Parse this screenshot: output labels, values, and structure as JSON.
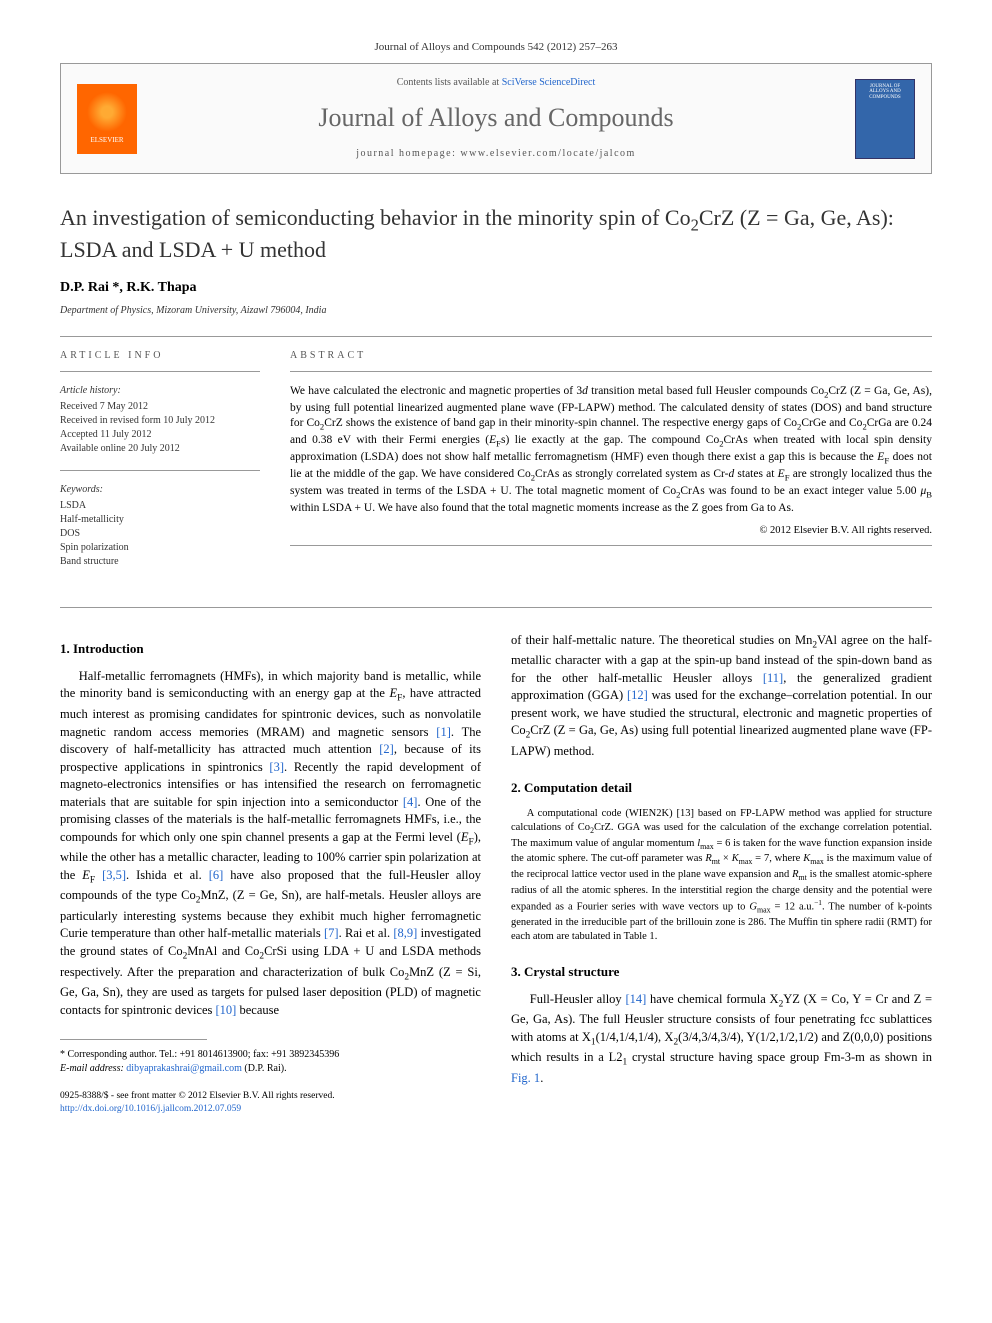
{
  "journal_ref": "Journal of Alloys and Compounds 542 (2012) 257–263",
  "header": {
    "elsevier_label": "ELSEVIER",
    "contents_prefix": "Contents lists available at ",
    "contents_link": "SciVerse ScienceDirect",
    "journal_title": "Journal of Alloys and Compounds",
    "homepage_prefix": "journal homepage: ",
    "homepage_url": "www.elsevier.com/locate/jalcom",
    "cover_text": "JOURNAL OF ALLOYS AND COMPOUNDS"
  },
  "title_html": "An investigation of semiconducting behavior in the minority spin of Co<sub>2</sub>CrZ (Z = Ga, Ge, As): LSDA and LSDA + U method",
  "authors": "D.P. Rai *, R.K. Thapa",
  "affiliation": "Department of Physics, Mizoram University, Aizawl 796004, India",
  "article_info": {
    "heading": "ARTICLE INFO",
    "history_label": "Article history:",
    "history": [
      "Received 7 May 2012",
      "Received in revised form 10 July 2012",
      "Accepted 11 July 2012",
      "Available online 20 July 2012"
    ],
    "keywords_label": "Keywords:",
    "keywords": [
      "LSDA",
      "Half-metallicity",
      "DOS",
      "Spin polarization",
      "Band structure"
    ]
  },
  "abstract": {
    "heading": "ABSTRACT",
    "text_html": "We have calculated the electronic and magnetic properties of 3<i>d</i> transition metal based full Heusler compounds Co<sub>2</sub>CrZ (Z = Ga, Ge, As), by using full potential linearized augmented plane wave (FP-LAPW) method. The calculated density of states (DOS) and band structure for Co<sub>2</sub>CrZ shows the existence of band gap in their minority-spin channel. The respective energy gaps of Co<sub>2</sub>CrGe and Co<sub>2</sub>CrGa are 0.24 and 0.38 eV with their Fermi energies (<i>E</i><sub>F</sub>s) lie exactly at the gap. The compound Co<sub>2</sub>CrAs when treated with local spin density approximation (LSDA) does not show half metallic ferromagnetism (HMF) even though there exist a gap this is because the <i>E</i><sub>F</sub> does not lie at the middle of the gap. We have considered Co<sub>2</sub>CrAs as strongly correlated system as Cr-<i>d</i> states at <i>E</i><sub>F</sub> are strongly localized thus the system was treated in terms of the LSDA + U. The total magnetic moment of Co<sub>2</sub>CrAs was found to be an exact integer value 5.00 <i>μ</i><sub>B</sub> within LSDA + U. We have also found that the total magnetic moments increase as the Z goes from Ga to As.",
    "copyright": "© 2012 Elsevier B.V. All rights reserved."
  },
  "sections": {
    "intro_heading": "1. Introduction",
    "intro_html": "Half-metallic ferromagnets (HMFs), in which majority band is metallic, while the minority band is semiconducting with an energy gap at the <i>E</i><sub>F</sub>, have attracted much interest as promising candidates for spintronic devices, such as nonvolatile magnetic random access memories (MRAM) and magnetic sensors <a>[1]</a>. The discovery of half-metallicity has attracted much attention <a>[2]</a>, because of its prospective applications in spintronics <a>[3]</a>. Recently the rapid development of magneto-electronics intensifies or has intensified the research on ferromagnetic materials that are suitable for spin injection into a semiconductor <a>[4]</a>. One of the promising classes of the materials is the half-metallic ferromagnets HMFs, i.e., the compounds for which only one spin channel presents a gap at the Fermi level (<i>E</i><sub>F</sub>), while the other has a metallic character, leading to 100% carrier spin polarization at the <i>E</i><sub>F</sub> <a>[3,5]</a>. Ishida et al. <a>[6]</a> have also proposed that the full-Heusler alloy compounds of the type Co<sub>2</sub>MnZ, (Z = Ge, Sn), are half-metals. Heusler alloys are particularly interesting systems because they exhibit much higher ferromagnetic Curie temperature than other half-metallic materials <a>[7]</a>. Rai et al. <a>[8,9]</a> investigated the ground states of Co<sub>2</sub>MnAl and Co<sub>2</sub>CrSi using LDA + U and LSDA methods respectively. After the preparation and characterization of bulk Co<sub>2</sub>MnZ (Z = Si, Ge, Ga, Sn), they are used as targets for pulsed laser deposition (PLD) of magnetic contacts for spintronic devices <a>[10]</a> because",
    "intro_cont_html": "of their half-mettalic nature. The theoretical studies on Mn<sub>2</sub>VAl agree on the half-metallic character with a gap at the spin-up band instead of the spin-down band as for the other half-metallic Heusler alloys <a>[11]</a>, the generalized gradient approximation (GGA) <a>[12]</a> was used for the exchange–correlation potential. In our present work, we have studied the structural, electronic and magnetic properties of Co<sub>2</sub>CrZ (Z = Ga, Ge, As) using full potential linearized augmented plane wave (FP-LAPW) method.",
    "comp_heading": "2. Computation detail",
    "comp_html": "A computational code (WIEN2K) <a>[13]</a> based on FP-LAPW method was applied for structure calculations of Co<sub>2</sub>CrZ. GGA was used for the calculation of the exchange correlation potential. The maximum value of angular momentum <i>l</i><sub>max</sub> = 6 is taken for the wave function expansion inside the atomic sphere. The cut-off parameter was <i>R</i><sub>mt</sub> × <i>K</i><sub>max</sub> = 7, where <i>K</i><sub>max</sub> is the maximum value of the reciprocal lattice vector used in the plane wave expansion and <i>R</i><sub>mt</sub> is the smallest atomic-sphere radius of all the atomic spheres. In the interstitial region the charge density and the potential were expanded as a Fourier series with wave vectors up to <i>G</i><sub>max</sub> = 12 a.u.<sup>−1</sup>. The number of k-points generated in the irreducible part of the brillouin zone is 286. The Muffin tin sphere radii (RMT) for each atom are tabulated in <a>Table 1</a>.",
    "crystal_heading": "3. Crystal structure",
    "crystal_html": "Full-Heusler alloy <a>[14]</a> have chemical formula X<sub>2</sub>YZ (X = Co, Y = Cr and Z = Ge, Ga, As). The full Heusler structure consists of four penetrating fcc sublattices with atoms at X<sub>1</sub>(1/4,1/4,1/4), X<sub>2</sub>(3/4,3/4,3/4), Y(1/2,1/2,1/2) and Z(0,0,0) positions which results in a L2<sub>1</sub> crystal structure having space group Fm-3-m as shown in <a>Fig. 1</a>."
  },
  "footer": {
    "corr_label": "* Corresponding author. Tel.: +91 8014613900; fax: +91 3892345396",
    "email_label": "E-mail address:",
    "email": "dibyaprakashrai@gmail.com",
    "email_suffix": "(D.P. Rai).",
    "issn_line": "0925-8388/$ - see front matter © 2012 Elsevier B.V. All rights reserved.",
    "doi": "http://dx.doi.org/10.1016/j.jallcom.2012.07.059"
  },
  "colors": {
    "link": "#2266cc",
    "elsevier_orange": "#ff6600",
    "cover_blue": "#3366aa",
    "rule_gray": "#999999"
  }
}
